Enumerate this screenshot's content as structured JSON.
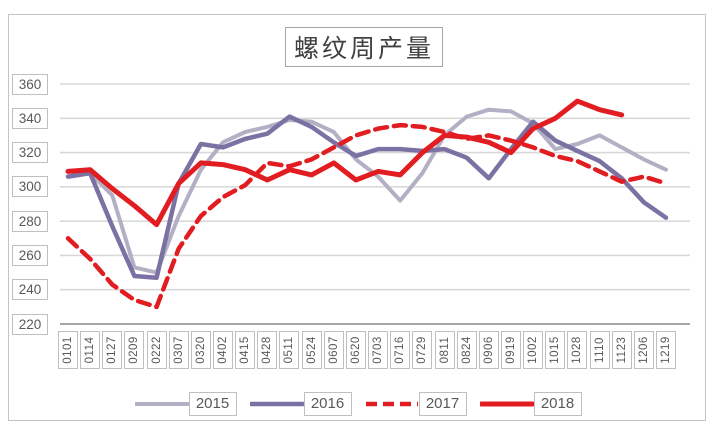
{
  "chart_data": {
    "type": "line",
    "title": "螺纹周产量",
    "categories": [
      "0101",
      "0114",
      "0127",
      "0209",
      "0222",
      "0307",
      "0320",
      "0402",
      "0415",
      "0428",
      "0511",
      "0524",
      "0607",
      "0620",
      "0703",
      "0716",
      "0729",
      "0811",
      "0824",
      "0906",
      "0919",
      "1002",
      "1015",
      "1028",
      "1110",
      "1123",
      "1206",
      "1219"
    ],
    "yticks": [
      360,
      340,
      320,
      300,
      280,
      260,
      240,
      220
    ],
    "ylim": [
      220,
      360
    ],
    "ytick_step": 20,
    "grid": true,
    "legend_position": "bottom",
    "series": [
      {
        "name": "2015",
        "color": "#b3afc4",
        "style": "solid",
        "width": 4,
        "values": [
          306,
          308,
          295,
          253,
          250,
          283,
          310,
          326,
          332,
          335,
          339,
          338,
          332,
          316,
          306,
          292,
          308,
          330,
          341,
          345,
          344,
          337,
          322,
          325,
          330,
          323,
          316,
          310
        ]
      },
      {
        "name": "2016",
        "color": "#7c71a3",
        "style": "solid",
        "width": 4.5,
        "values": [
          306,
          308,
          277,
          248,
          247,
          302,
          325,
          323,
          328,
          331,
          341,
          335,
          326,
          318,
          322,
          322,
          321,
          322,
          317,
          305,
          322,
          338,
          327,
          321,
          315,
          305,
          291,
          282
        ]
      },
      {
        "name": "2017",
        "color": "#e21d22",
        "style": "dashed",
        "width": 4.5,
        "values": [
          270,
          258,
          243,
          234,
          230,
          264,
          283,
          294,
          301,
          314,
          312,
          316,
          323,
          330,
          334,
          336,
          335,
          332,
          328,
          330,
          327,
          323,
          318,
          315,
          309,
          303,
          306,
          302
        ]
      },
      {
        "name": "2018",
        "color": "#e21d22",
        "style": "solid",
        "width": 5,
        "values": [
          309,
          310,
          299,
          289,
          278,
          302,
          314,
          313,
          310,
          304,
          310,
          307,
          314,
          304,
          309,
          307,
          320,
          330,
          329,
          326,
          320,
          334,
          340,
          350,
          345,
          342,
          null,
          null
        ]
      }
    ],
    "colors": {
      "gridline": "#d9d9d9",
      "axis_line": "#a6a6a6",
      "tick_label": "#595959",
      "box_border": "#bfbfbf",
      "title_text": "#404040",
      "frame_border": "#c4c4c4",
      "background": "#ffffff"
    }
  }
}
